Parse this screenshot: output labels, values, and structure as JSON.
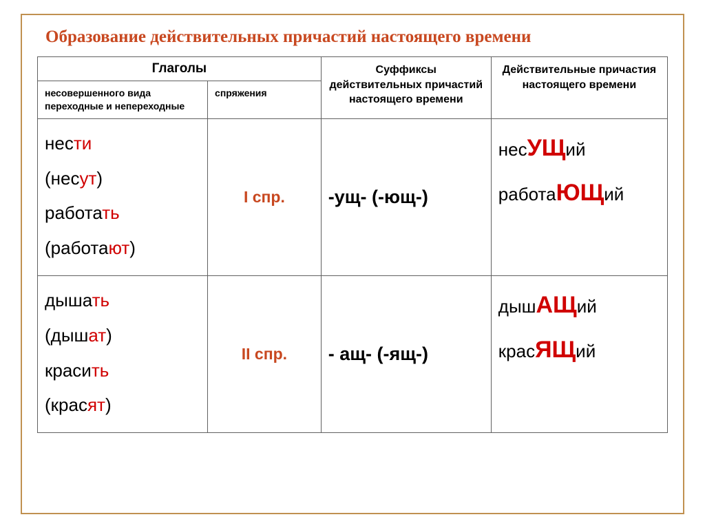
{
  "title": "Образование действительных причастий настоящего времени",
  "headers": {
    "verbs": "Глаголы",
    "verbs_sub1": "несовершенного вида переходные и непереходные",
    "verbs_sub2": "спряжения",
    "suffixes": "Суффиксы действительных причастий настоящего времени",
    "participles": "Действительные причастия настоящего времени"
  },
  "rows": [
    {
      "verbs": [
        {
          "stem": "нес",
          "end": "ти"
        },
        {
          "open": "(нес",
          "end": "ут",
          "close": ")"
        },
        {
          "stem": "работа",
          "end": "ть"
        },
        {
          "open": "(работа",
          "end": "ют",
          "close": ")"
        }
      ],
      "spr": "I спр.",
      "suffix": "-ущ- (-ющ-)",
      "participles": [
        {
          "stem": "нес",
          "suf": "УЩ",
          "end": "ий"
        },
        {
          "stem": "работа",
          "suf": "ЮЩ",
          "end": "ий"
        }
      ]
    },
    {
      "verbs": [
        {
          "stem": "дыша",
          "end": "ть"
        },
        {
          "open": "(дыш",
          "end": "ат",
          "close": ")"
        },
        {
          "stem": "краси",
          "end": "ть"
        },
        {
          "open": "(крас",
          "end": "ят",
          "close": ")"
        }
      ],
      "spr": "II спр.",
      "suffix": "- ащ- (-ящ-)",
      "participles": [
        {
          "stem": "дыш",
          "suf": "АЩ",
          "end": "ий"
        },
        {
          "stem": "крас",
          "suf": "ЯЩ",
          "end": "ий"
        }
      ]
    }
  ],
  "colors": {
    "title": "#c84820",
    "accent": "#d00000",
    "border_outer": "#c09050",
    "border_cell": "#606060",
    "text": "#000000"
  },
  "font_sizes": {
    "title": 25,
    "header": 19,
    "subhead": 14,
    "body": 26,
    "spr": 23,
    "suffix": 27,
    "big_suffix": 34
  }
}
